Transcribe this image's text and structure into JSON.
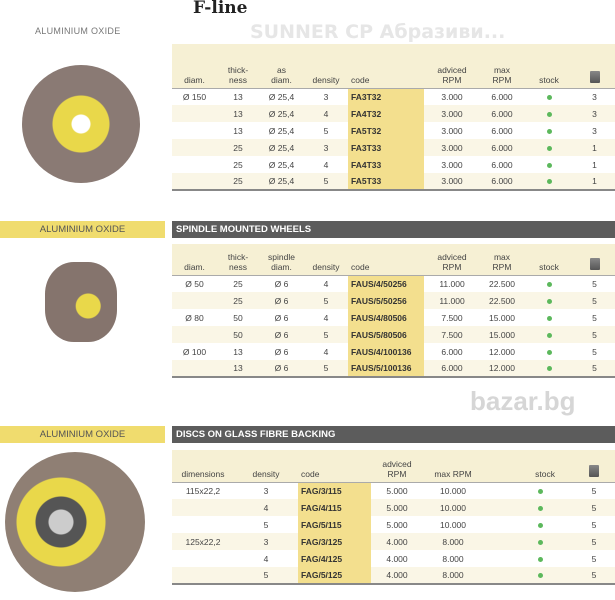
{
  "page_title": "F-line",
  "watermark": "SUNNER CP Абразиви...",
  "corner_watermark": "bazar.bg",
  "sections": [
    {
      "label": "ALUMINIUM OXIDE",
      "heading": "",
      "headers": [
        "diam.",
        "thick-\nness",
        "as\ndiam.",
        "density",
        "code",
        "adviced\nRPM",
        "max\nRPM",
        "stock"
      ],
      "rows": [
        [
          "Ø 150",
          "13",
          "Ø 25,4",
          "3",
          "FA3T32",
          "3.000",
          "6.000",
          "3"
        ],
        [
          "",
          "13",
          "Ø 25,4",
          "4",
          "FA4T32",
          "3.000",
          "6.000",
          "3"
        ],
        [
          "",
          "13",
          "Ø 25,4",
          "5",
          "FA5T32",
          "3.000",
          "6.000",
          "3"
        ],
        [
          "",
          "25",
          "Ø 25,4",
          "3",
          "FA3T33",
          "3.000",
          "6.000",
          "1"
        ],
        [
          "",
          "25",
          "Ø 25,4",
          "4",
          "FA4T33",
          "3.000",
          "6.000",
          "1"
        ],
        [
          "",
          "25",
          "Ø 25,4",
          "5",
          "FA5T33",
          "3.000",
          "6.000",
          "1"
        ]
      ]
    },
    {
      "label": "ALUMINIUM OXIDE",
      "heading": "SPINDLE MOUNTED WHEELS",
      "headers": [
        "diam.",
        "thick-\nness",
        "spindle\ndiam.",
        "density",
        "code",
        "adviced\nRPM",
        "max\nRPM",
        "stock"
      ],
      "rows": [
        [
          "Ø 50",
          "25",
          "Ø 6",
          "4",
          "FAUS/4/50256",
          "11.000",
          "22.500",
          "5"
        ],
        [
          "",
          "25",
          "Ø 6",
          "5",
          "FAUS/5/50256",
          "11.000",
          "22.500",
          "5"
        ],
        [
          "Ø 80",
          "50",
          "Ø 6",
          "4",
          "FAUS/4/80506",
          "7.500",
          "15.000",
          "5"
        ],
        [
          "",
          "50",
          "Ø 6",
          "5",
          "FAUS/5/80506",
          "7.500",
          "15.000",
          "5"
        ],
        [
          "Ø 100",
          "13",
          "Ø 6",
          "4",
          "FAUS/4/100136",
          "6.000",
          "12.000",
          "5"
        ],
        [
          "",
          "13",
          "Ø 6",
          "5",
          "FAUS/5/100136",
          "6.000",
          "12.000",
          "5"
        ]
      ]
    },
    {
      "label": "ALUMINIUM OXIDE",
      "heading": "DISCS ON GLASS FIBRE BACKING",
      "headers": [
        "dimensions",
        "density",
        "code",
        "adviced\nRPM",
        "max RPM",
        "stock"
      ],
      "rows": [
        [
          "115x22,2",
          "3",
          "FAG/3/115",
          "5.000",
          "10.000",
          "5"
        ],
        [
          "",
          "4",
          "FAG/4/115",
          "5.000",
          "10.000",
          "5"
        ],
        [
          "",
          "5",
          "FAG/5/115",
          "5.000",
          "10.000",
          "5"
        ],
        [
          "125x22,2",
          "3",
          "FAG/3/125",
          "4.000",
          "8.000",
          "5"
        ],
        [
          "",
          "4",
          "FAG/4/125",
          "4.000",
          "8.000",
          "5"
        ],
        [
          "",
          "5",
          "FAG/5/125",
          "4.000",
          "8.000",
          "5"
        ]
      ]
    }
  ],
  "colors": {
    "label_bg": "#f0dc6e",
    "bar_bg": "#5c5c5c",
    "code_bg": "#f3df8e",
    "stock_dot": "#5cb85c"
  }
}
